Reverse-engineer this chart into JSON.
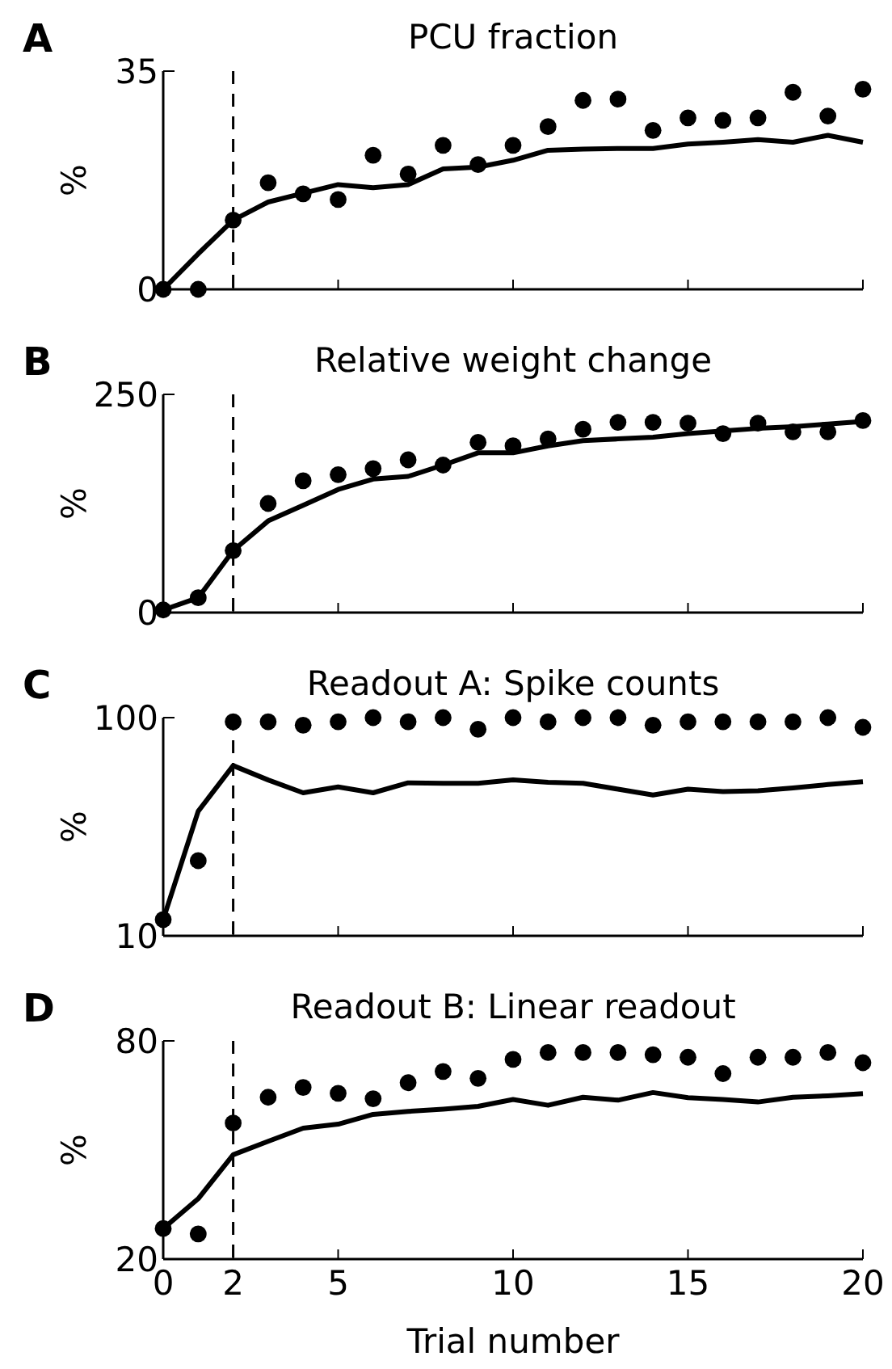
{
  "chart_data": [
    {
      "type": "line",
      "title": "PCU fraction",
      "ylabel": "%",
      "annotations": [
        "A"
      ],
      "x": [
        0,
        1,
        2,
        3,
        4,
        5,
        6,
        7,
        8,
        9,
        10,
        11,
        12,
        13,
        14,
        15,
        16,
        17,
        18,
        19,
        20
      ],
      "xlim": [
        0,
        20
      ],
      "xticks": [
        0,
        2,
        5,
        10,
        15,
        20
      ],
      "ylim": [
        0,
        35
      ],
      "yticks": [
        0,
        35
      ],
      "tick_labels": "y",
      "ref_lines": [
        {
          "axis": "x",
          "value": 2,
          "line_style": "dashed",
          "color": "#000000"
        }
      ],
      "series": [
        {
          "type": "scatter",
          "marker": "circle",
          "color": "#000000",
          "values": [
            0,
            0,
            11.1,
            17.1,
            15.3,
            14.4,
            21.5,
            18.5,
            23.1,
            20.0,
            23.1,
            26.1,
            30.3,
            30.5,
            25.5,
            27.5,
            27.1,
            27.5,
            31.6,
            27.8,
            32.1
          ]
        },
        {
          "marker": "none",
          "color": "#000000",
          "values": [
            0,
            5.7,
            11.1,
            14.0,
            15.4,
            16.8,
            16.3,
            16.8,
            19.3,
            19.6,
            20.7,
            22.3,
            22.5,
            22.6,
            22.6,
            23.3,
            23.6,
            24.0,
            23.6,
            24.7,
            23.6
          ]
        }
      ]
    },
    {
      "type": "line",
      "title": "Relative weight change",
      "ylabel": "%",
      "annotations": [
        "B"
      ],
      "x": [
        0,
        1,
        2,
        3,
        4,
        5,
        6,
        7,
        8,
        9,
        10,
        11,
        12,
        13,
        14,
        15,
        16,
        17,
        18,
        19,
        20
      ],
      "xlim": [
        0,
        20
      ],
      "xticks": [
        0,
        2,
        5,
        10,
        15,
        20
      ],
      "ylim": [
        0,
        250
      ],
      "yticks": [
        0,
        250
      ],
      "tick_labels": "y",
      "ref_lines": [
        {
          "axis": "x",
          "value": 2,
          "line_style": "dashed",
          "color": "#000000"
        }
      ],
      "series": [
        {
          "type": "scatter",
          "marker": "circle",
          "color": "#000000",
          "values": [
            3,
            17,
            71,
            125,
            151,
            158,
            165,
            175,
            169,
            195,
            191,
            199,
            210,
            218,
            218,
            217,
            205,
            217,
            207,
            207,
            220
          ]
        },
        {
          "marker": "none",
          "color": "#000000",
          "values": [
            3,
            17,
            71,
            105,
            123,
            141,
            153,
            156,
            169,
            183,
            183,
            191,
            197,
            199,
            201,
            205,
            208,
            211,
            213,
            216,
            219
          ]
        }
      ]
    },
    {
      "type": "line",
      "title": "Readout A: Spike counts",
      "ylabel": "%",
      "annotations": [
        "C"
      ],
      "x": [
        0,
        1,
        2,
        3,
        4,
        5,
        6,
        7,
        8,
        9,
        10,
        11,
        12,
        13,
        14,
        15,
        16,
        17,
        18,
        19,
        20
      ],
      "xlim": [
        0,
        20
      ],
      "xticks": [
        0,
        2,
        5,
        10,
        15,
        20
      ],
      "ylim": [
        10,
        100
      ],
      "yticks": [
        10,
        100
      ],
      "tick_labels": "y",
      "ref_lines": [
        {
          "axis": "x",
          "value": 2,
          "line_style": "dashed",
          "color": "#000000"
        }
      ],
      "series": [
        {
          "type": "scatter",
          "marker": "circle",
          "color": "#000000",
          "values": [
            16.7,
            41,
            98.3,
            98.3,
            96.9,
            98.3,
            100,
            98.3,
            100,
            95.2,
            100,
            98.3,
            100,
            100,
            96.9,
            98.3,
            98.3,
            98.3,
            98.3,
            100,
            96
          ]
        },
        {
          "marker": "none",
          "color": "#000000",
          "values": [
            16.7,
            61.4,
            80.2,
            74.3,
            69,
            71.4,
            69,
            73.1,
            72.9,
            72.9,
            74.3,
            73.3,
            72.9,
            70.5,
            68.1,
            70.5,
            69.5,
            69.8,
            71,
            72.4,
            73.6
          ]
        }
      ]
    },
    {
      "type": "line",
      "title": "Readout B: Linear readout",
      "xlabel": "Trial number",
      "ylabel": "%",
      "annotations": [
        "D"
      ],
      "x": [
        0,
        1,
        2,
        3,
        4,
        5,
        6,
        7,
        8,
        9,
        10,
        11,
        12,
        13,
        14,
        15,
        16,
        17,
        18,
        19,
        20
      ],
      "xlim": [
        0,
        20
      ],
      "xticks": [
        0,
        2,
        5,
        10,
        15,
        20
      ],
      "ylim": [
        20,
        80
      ],
      "yticks": [
        20,
        80
      ],
      "ref_lines": [
        {
          "axis": "x",
          "value": 2,
          "line_style": "dashed",
          "color": "#000000"
        }
      ],
      "series": [
        {
          "type": "scatter",
          "marker": "circle",
          "color": "#000000",
          "values": [
            28.4,
            26.9,
            57.4,
            64.5,
            67.2,
            65.6,
            64.1,
            68.5,
            71.6,
            69.7,
            74.9,
            76.8,
            76.8,
            76.8,
            76.2,
            75.5,
            71,
            75.5,
            75.5,
            76.8,
            74
          ]
        },
        {
          "marker": "none",
          "color": "#000000",
          "values": [
            28.4,
            36.6,
            48.7,
            52.4,
            56,
            57.1,
            59.8,
            60.6,
            61.2,
            62,
            63.9,
            62.3,
            64.5,
            63.7,
            65.8,
            64.4,
            63.9,
            63.2,
            64.5,
            64.9,
            65.5
          ]
        }
      ]
    }
  ]
}
